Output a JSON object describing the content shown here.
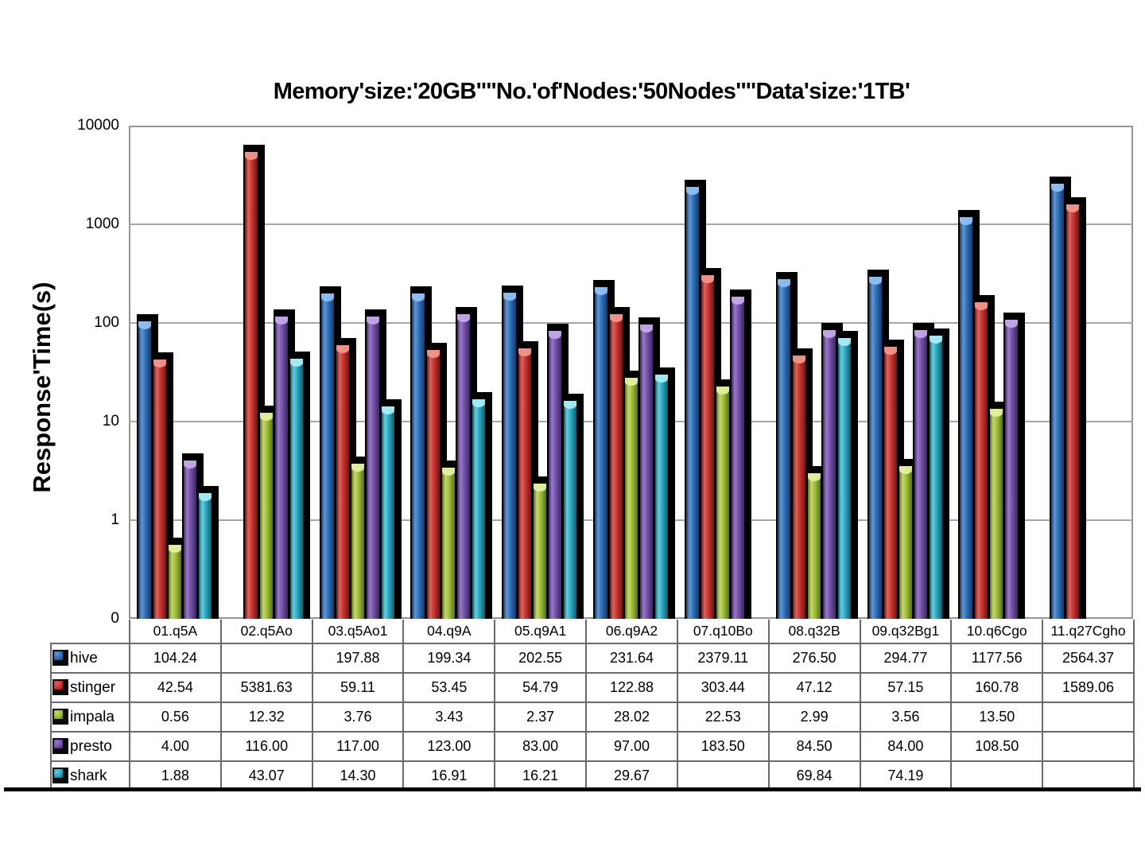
{
  "title": "Memory'size:'20GB''''No.'of'Nodes:'50Nodes''''Data'size:'1TB'",
  "y_axis": {
    "label": "Response'Time(s)",
    "ticks": [
      "10000",
      "1000",
      "100",
      "10",
      "1",
      "0"
    ]
  },
  "chart_data": {
    "type": "bar",
    "yscale": "log",
    "ylim": [
      0.1,
      10000
    ],
    "grid": true,
    "title": "Memory'size:'20GB''''No.'of'Nodes:'50Nodes''''Data'size:'1TB'",
    "ylabel": "Response'Time(s)",
    "legend_position": "table-left",
    "categories": [
      "01.q5A",
      "02.q5Ao",
      "03.q5Ao1",
      "04.q9A",
      "05.q9A1",
      "06.q9A2",
      "07.q10Bo",
      "08.q32B",
      "09.q32Bg1",
      "10.q6Cgo",
      "11.q27Cgho"
    ],
    "series": [
      {
        "name": "hive",
        "color": "#2d6cb4",
        "color_light": "#5e97d6",
        "color_dark": "#153a66",
        "color_cap": "#8fc0f0",
        "values": [
          104.24,
          null,
          197.88,
          199.34,
          202.55,
          231.64,
          2379.11,
          276.5,
          294.77,
          1177.56,
          2564.37
        ],
        "display": [
          "104.24",
          "",
          "197.88",
          "199.34",
          "202.55",
          "231.64",
          "2379.11",
          "276.50",
          "294.77",
          "1177.56",
          "2564.37"
        ]
      },
      {
        "name": "stinger",
        "color": "#c23230",
        "color_light": "#e0635a",
        "color_dark": "#6e1616",
        "color_cap": "#f0978c",
        "values": [
          42.54,
          5381.63,
          59.11,
          53.45,
          54.79,
          122.88,
          303.44,
          47.12,
          57.15,
          160.78,
          1589.06
        ],
        "display": [
          "42.54",
          "5381.63",
          "59.11",
          "53.45",
          "54.79",
          "122.88",
          "303.44",
          "47.12",
          "57.15",
          "160.78",
          "1589.06"
        ]
      },
      {
        "name": "impala",
        "color": "#9cba38",
        "color_light": "#c4d968",
        "color_dark": "#55701c",
        "color_cap": "#e2f0a0",
        "values": [
          0.56,
          12.32,
          3.76,
          3.43,
          2.37,
          28.02,
          22.53,
          2.99,
          3.56,
          13.5,
          null
        ],
        "display": [
          "0.56",
          "12.32",
          "3.76",
          "3.43",
          "2.37",
          "28.02",
          "22.53",
          "2.99",
          "3.56",
          "13.50",
          ""
        ]
      },
      {
        "name": "presto",
        "color": "#6f50a2",
        "color_light": "#9a78cc",
        "color_dark": "#3c2660",
        "color_cap": "#c3a8e8",
        "values": [
          4.0,
          116.0,
          117.0,
          123.0,
          83.0,
          97.0,
          183.5,
          84.5,
          84.0,
          108.5,
          null
        ],
        "display": [
          "4.00",
          "116.00",
          "117.00",
          "123.00",
          "83.00",
          "97.00",
          "183.50",
          "84.50",
          "84.00",
          "108.50",
          ""
        ]
      },
      {
        "name": "shark",
        "color": "#2ba4bd",
        "color_light": "#62cfe0",
        "color_dark": "#145b68",
        "color_cap": "#a8ecf4",
        "values": [
          1.88,
          43.07,
          14.3,
          16.91,
          16.21,
          29.67,
          null,
          69.84,
          74.19,
          null,
          null
        ],
        "display": [
          "1.88",
          "43.07",
          "14.30",
          "16.91",
          "16.21",
          "29.67",
          "",
          "69.84",
          "74.19",
          "",
          ""
        ]
      }
    ]
  }
}
